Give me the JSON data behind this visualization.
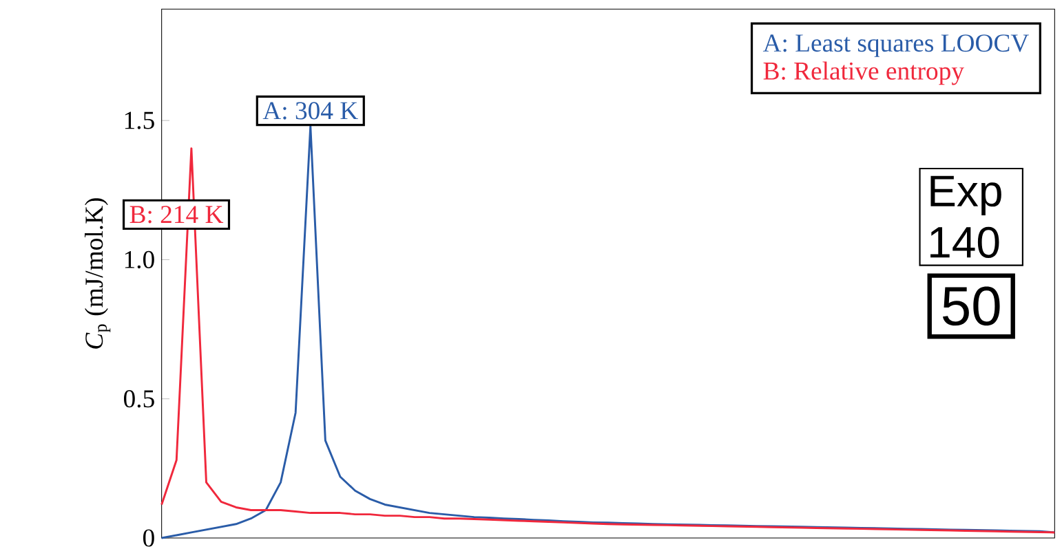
{
  "chart_data": {
    "type": "line",
    "ylabel": "*C*$_{p}$ (mJ/mol.K)",
    "categories": [
      null,
      null,
      null,
      null,
      null,
      null,
      null,
      null,
      null,
      null,
      null,
      null,
      null,
      null,
      null,
      null,
      null,
      null,
      null,
      null,
      null,
      null,
      null,
      null,
      null,
      null,
      null,
      null,
      null,
      null,
      null,
      null,
      null,
      null,
      null,
      null,
      null,
      null,
      null,
      null,
      null,
      null,
      null,
      null,
      null,
      null,
      null,
      null,
      null,
      null,
      null,
      null,
      null,
      null,
      null,
      null,
      null,
      null,
      null,
      null,
      null
    ],
    "series": [
      {
        "name": "A: Least squares LOOCV",
        "color": "#2a5ca8",
        "values": [
          0.0,
          0.01,
          0.02,
          0.03,
          0.04,
          0.05,
          0.07,
          0.1,
          0.2,
          0.45,
          1.48,
          0.35,
          0.22,
          0.17,
          0.14,
          0.12,
          0.11,
          0.1,
          0.09,
          0.085,
          0.08,
          0.075,
          0.073,
          0.07,
          0.068,
          0.065,
          0.063,
          0.06,
          0.058,
          0.056,
          0.055,
          0.053,
          0.052,
          0.05,
          0.049,
          0.048,
          0.047,
          0.046,
          0.045,
          0.044,
          0.043,
          0.042,
          0.041,
          0.04,
          0.039,
          0.038,
          0.037,
          0.036,
          0.035,
          0.034,
          0.033,
          0.032,
          0.031,
          0.03,
          0.029,
          0.028,
          0.027,
          0.026,
          0.025,
          0.024,
          0.02
        ]
      },
      {
        "name": "B: Relative entropy",
        "color": "#f0283c",
        "values": [
          0.12,
          0.28,
          1.4,
          0.2,
          0.13,
          0.11,
          0.1,
          0.1,
          0.1,
          0.095,
          0.09,
          0.09,
          0.09,
          0.085,
          0.085,
          0.08,
          0.08,
          0.075,
          0.075,
          0.07,
          0.07,
          0.068,
          0.066,
          0.064,
          0.062,
          0.06,
          0.058,
          0.056,
          0.054,
          0.052,
          0.05,
          0.049,
          0.048,
          0.047,
          0.046,
          0.045,
          0.044,
          0.043,
          0.042,
          0.041,
          0.04,
          0.039,
          0.038,
          0.037,
          0.036,
          0.035,
          0.034,
          0.033,
          0.032,
          0.031,
          0.03,
          0.029,
          0.028,
          0.027,
          0.026,
          0.025,
          0.024,
          0.023,
          0.022,
          0.021,
          0.02
        ]
      }
    ],
    "annotations": [
      "A: 304 K",
      "B: 214 K",
      "Exp 140",
      "50"
    ],
    "ylim": [
      0,
      1.9
    ],
    "yticks": [
      0,
      0.5,
      {
        "value": 1.0,
        "label": "1.0"
      },
      1.5
    ],
    "tick_labels": "y",
    "legend": "top right",
    "marker": "none",
    "line_style": "solid",
    "grid": false
  }
}
